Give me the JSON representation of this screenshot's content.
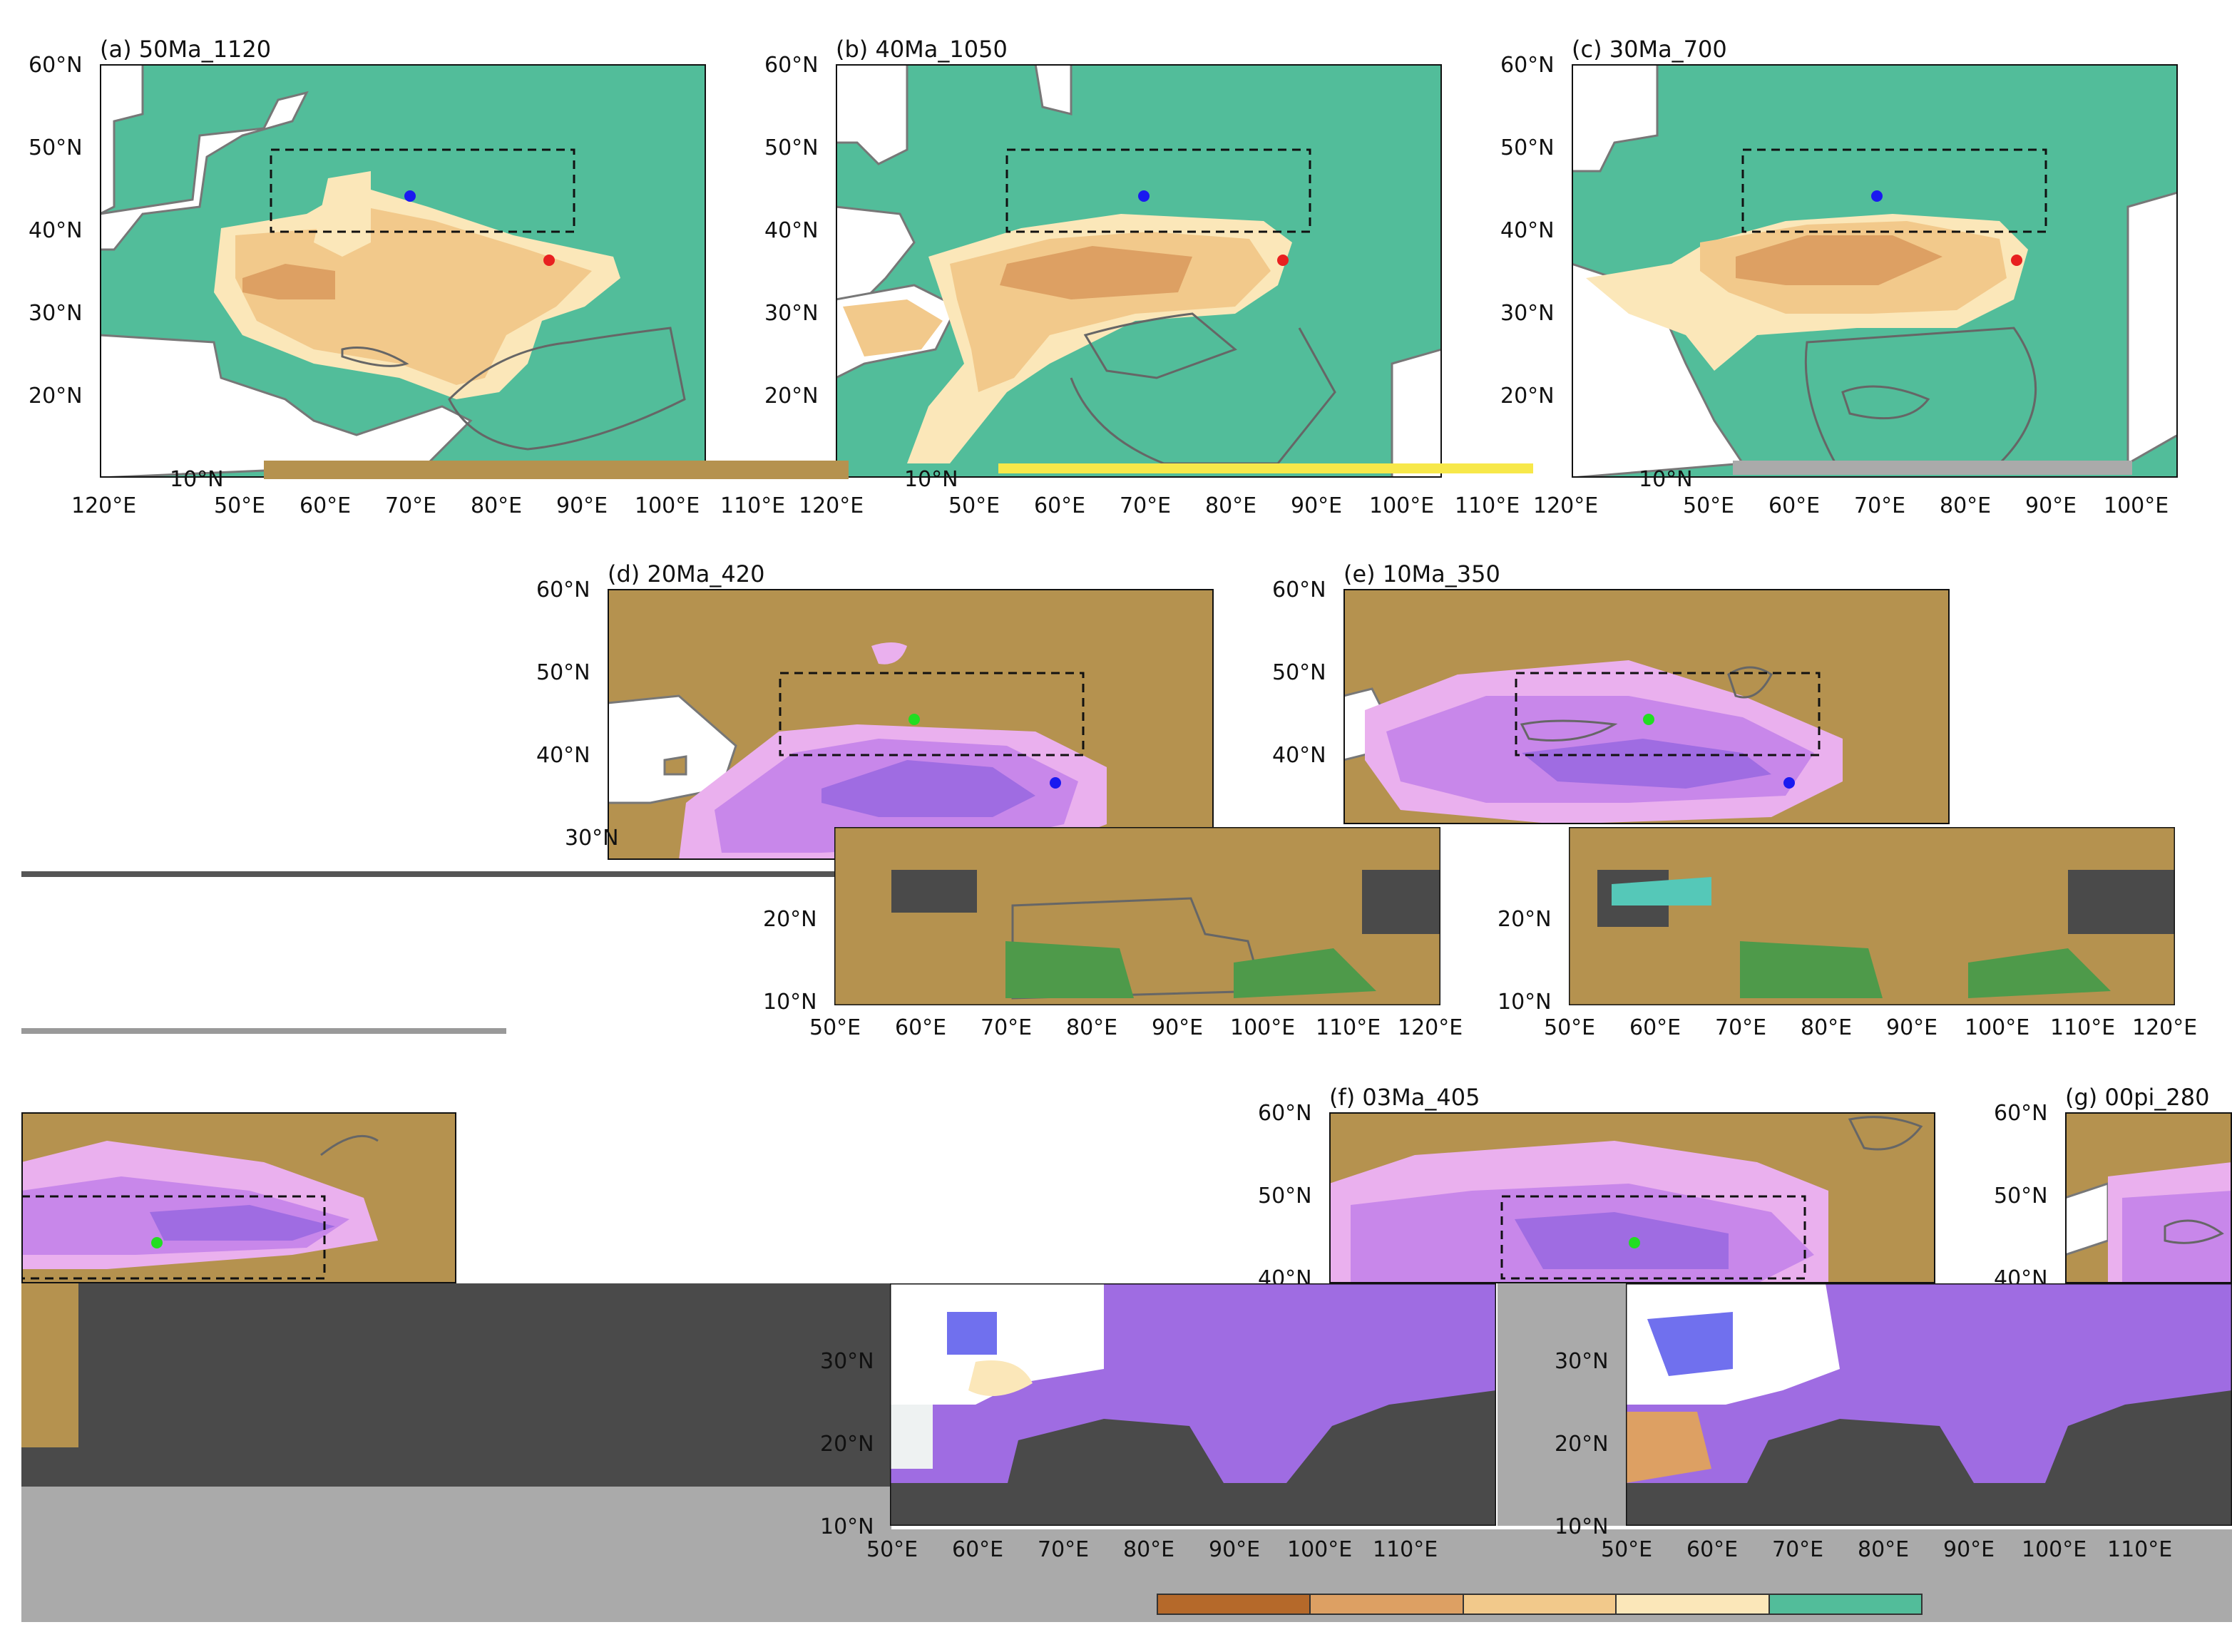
{
  "panels": {
    "a": {
      "title": "(a) 50Ma_1120"
    },
    "b": {
      "title": "(b) 40Ma_1050"
    },
    "c": {
      "title": "(c) 30Ma_700"
    },
    "d": {
      "title": "(d) 20Ma_420"
    },
    "e": {
      "title": "(e) 10Ma_350"
    },
    "f": {
      "title": "(f) 03Ma_405"
    },
    "g": {
      "title": "(g) 00pi_280"
    }
  },
  "axes": {
    "lat_labels": [
      "60°N",
      "50°N",
      "40°N",
      "30°N",
      "20°N",
      "10°N"
    ],
    "lon_labels": [
      "50°E",
      "60°E",
      "70°E",
      "80°E",
      "90°E",
      "100°E",
      "110°E",
      "120°E"
    ]
  },
  "colorbar": {
    "colors": [
      "#b5692a",
      "#dda063",
      "#f2c98b",
      "#fbe7b9",
      "#52bd9a"
    ]
  },
  "colors": {
    "humid": "#52bd9a",
    "arid_light": "#fbe7b9",
    "arid_mid": "#f2c98b",
    "arid_dark": "#dda063",
    "brown_land": "#b5924f",
    "purple_light": "#eab0ee",
    "purple_mid": "#c887ea",
    "purple_dark": "#9f6ce2",
    "ocean_grey": "#4a4a4a",
    "marker_blue": "#1a1af0",
    "marker_red": "#e82020",
    "marker_green": "#22dd22"
  }
}
